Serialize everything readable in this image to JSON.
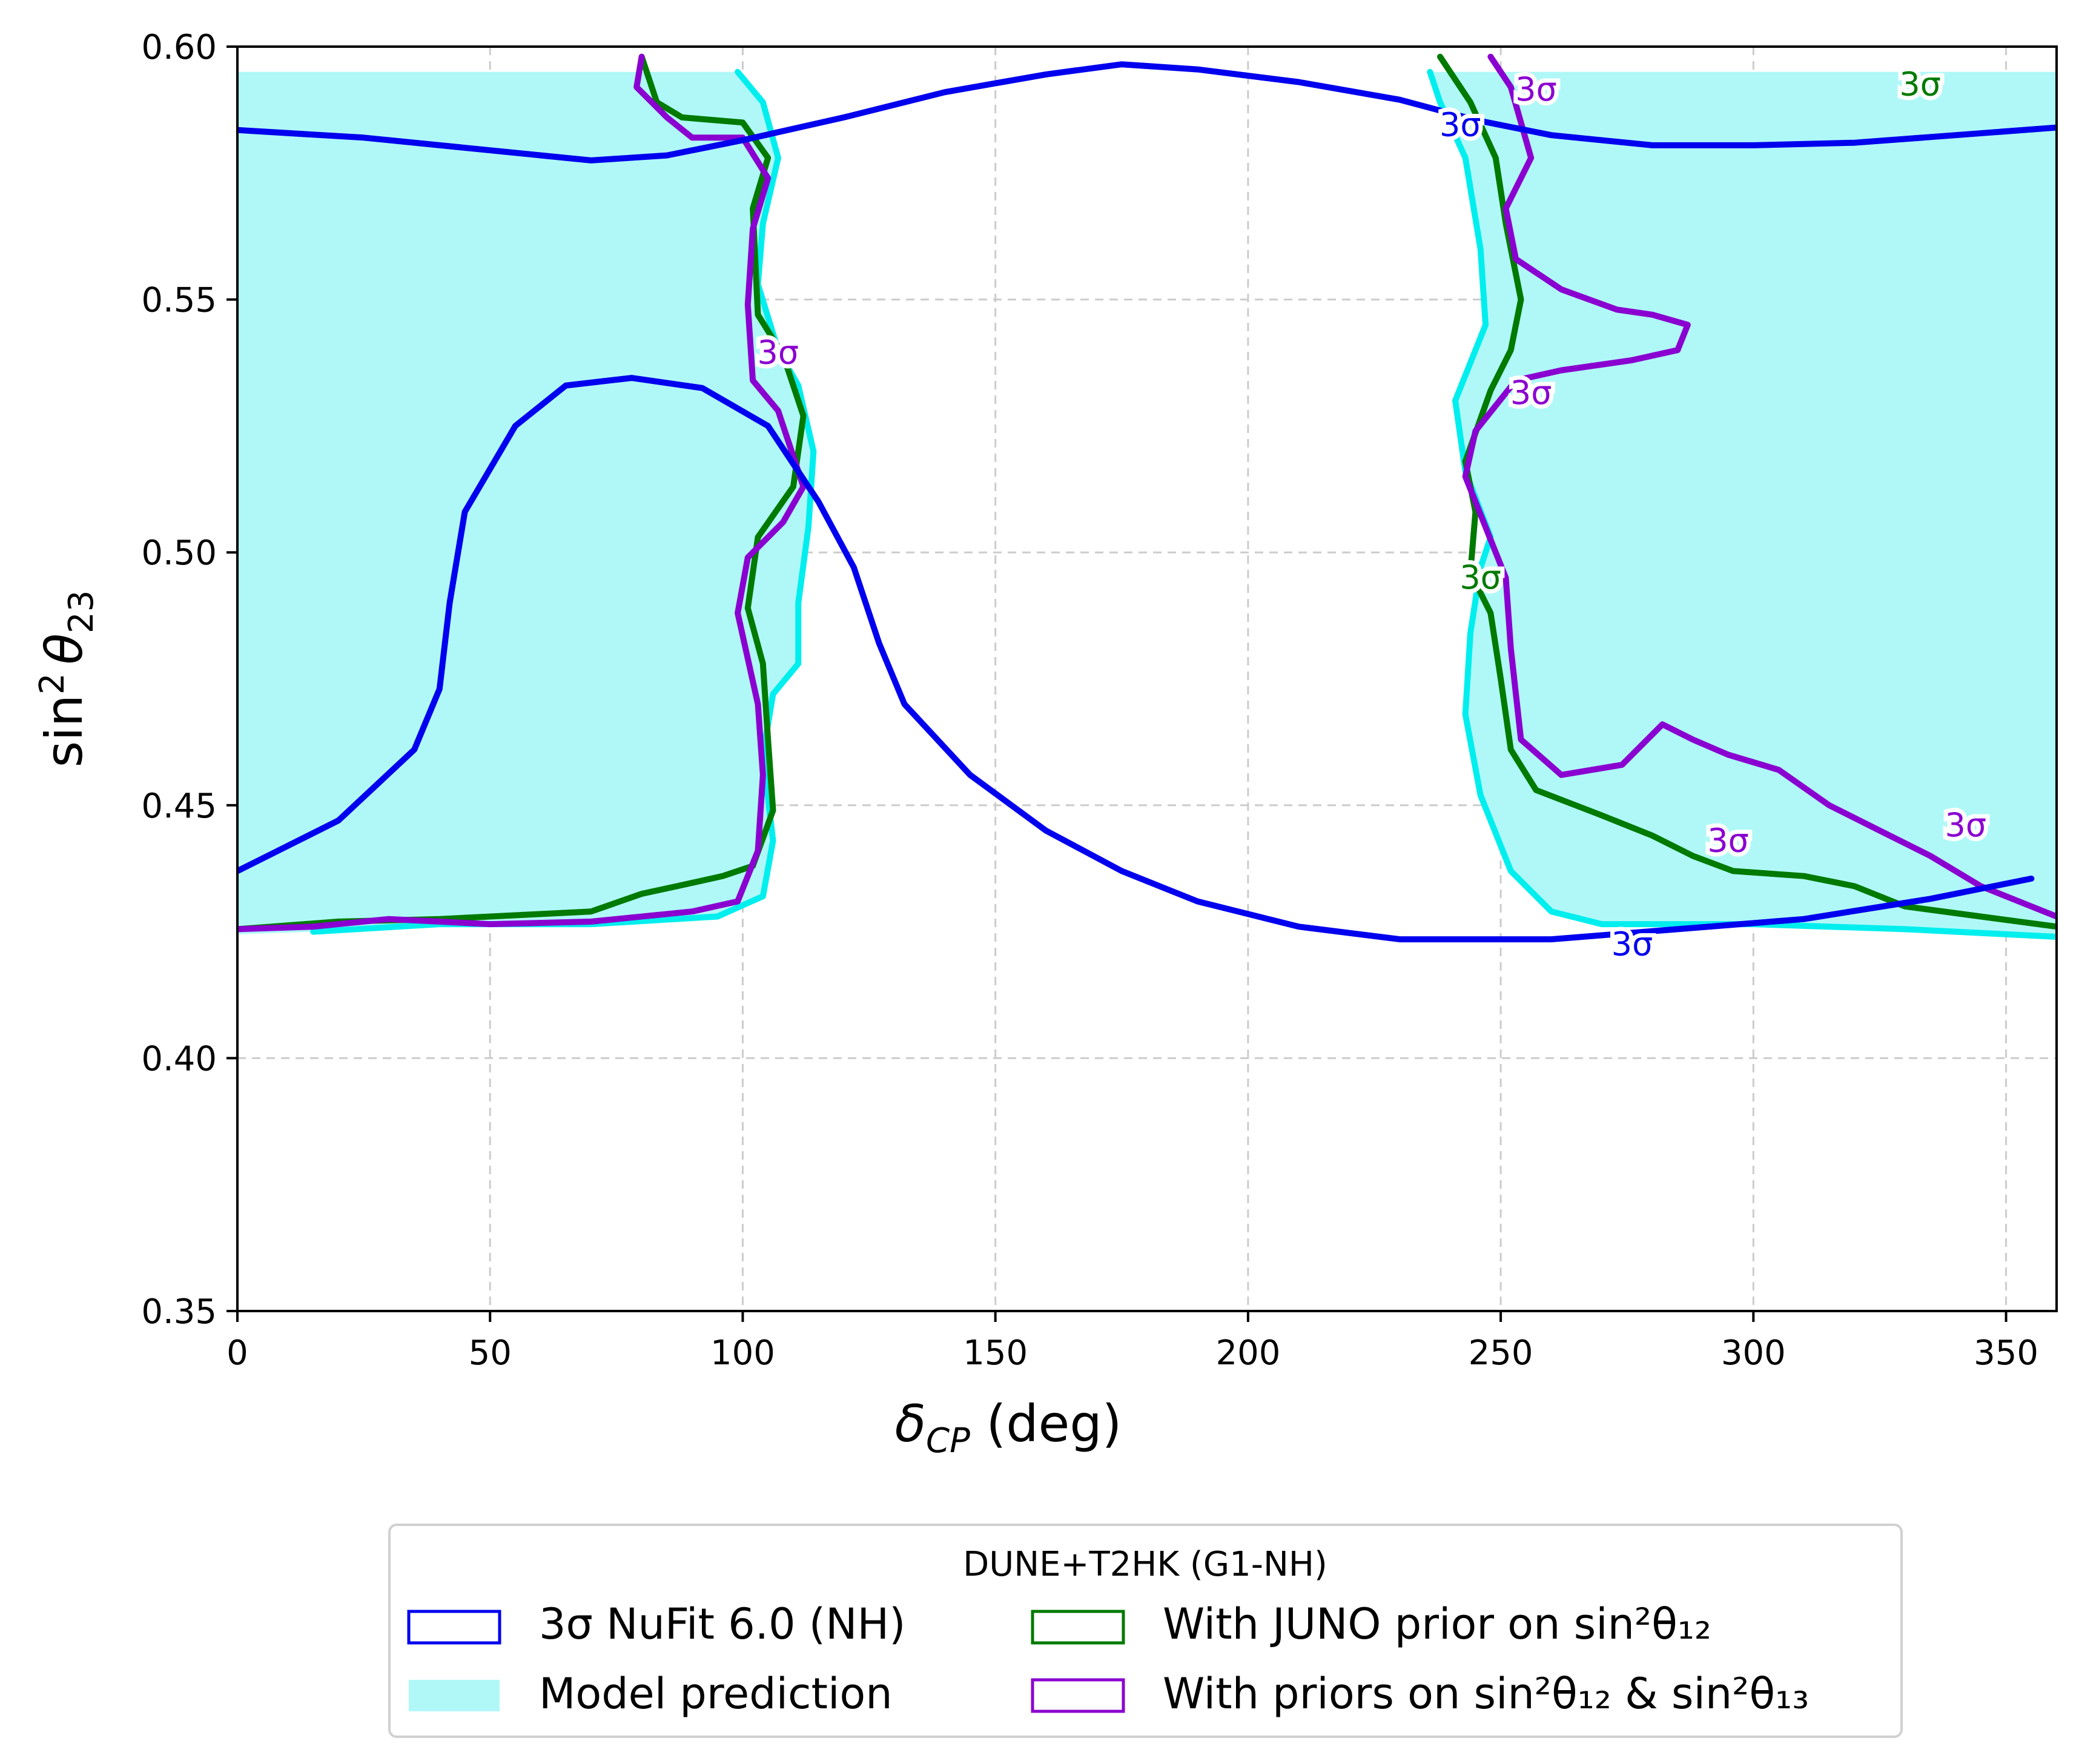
{
  "chart_data": {
    "type": "contour",
    "xlabel": "δ",
    "xlabel_sub": "CP",
    "xlabel_unit": " (deg)",
    "ylabel": "sin",
    "ylabel_sup": "2",
    "ylabel_theta": "θ",
    "ylabel_sub": "23",
    "xlim": [
      0,
      360
    ],
    "ylim": [
      0.35,
      0.6
    ],
    "xticks": [
      0,
      50,
      100,
      150,
      200,
      250,
      300,
      350
    ],
    "xtick_labels": [
      "0",
      "50",
      "100",
      "150",
      "200",
      "250",
      "300",
      "350"
    ],
    "yticks": [
      0.35,
      0.4,
      0.45,
      0.5,
      0.55,
      0.6
    ],
    "ytick_labels": [
      "0.35",
      "0.40",
      "0.45",
      "0.50",
      "0.55",
      "0.60"
    ],
    "grid": true,
    "legend": {
      "title": "DUNE+T2HK (G1-NH)",
      "placement": "below plot, centered, two columns",
      "entries": [
        {
          "label": "3σ NuFit 6.0 (NH)",
          "color": "#0000ee",
          "style": "outline"
        },
        {
          "label": "Model prediction",
          "color": "#b0f8f8",
          "style": "filled"
        },
        {
          "label": "With JUNO prior on sin²θ₁₂",
          "color": "#007a00",
          "style": "outline"
        },
        {
          "label": "With priors on sin²θ₁₂ & sin²θ₁₃",
          "color": "#8a00d0",
          "style": "outline"
        }
      ]
    },
    "colors": {
      "nufit": "#0000ee",
      "model_fill": "#b0f8f8",
      "model_edge": "#00eeee",
      "juno": "#007a00",
      "priors": "#8a00d0",
      "grid": "#cccccc"
    },
    "series": [
      {
        "key": "nufit_upper",
        "points": [
          [
            0,
            0.5835
          ],
          [
            25,
            0.582
          ],
          [
            50,
            0.5795
          ],
          [
            70,
            0.5775
          ],
          [
            85,
            0.5785
          ],
          [
            100,
            0.5815
          ],
          [
            120,
            0.586
          ],
          [
            140,
            0.591
          ],
          [
            160,
            0.5945
          ],
          [
            175,
            0.5965
          ],
          [
            190,
            0.5955
          ],
          [
            210,
            0.593
          ],
          [
            230,
            0.5895
          ],
          [
            245,
            0.5855
          ],
          [
            260,
            0.5825
          ],
          [
            280,
            0.5805
          ],
          [
            300,
            0.5805
          ],
          [
            320,
            0.581
          ],
          [
            340,
            0.5825
          ],
          [
            360,
            0.584
          ]
        ]
      },
      {
        "key": "nufit_lower",
        "points": [
          [
            0,
            0.437
          ],
          [
            20,
            0.447
          ],
          [
            35,
            0.461
          ],
          [
            40,
            0.473
          ],
          [
            42,
            0.49
          ],
          [
            45,
            0.508
          ],
          [
            55,
            0.525
          ],
          [
            65,
            0.533
          ],
          [
            78,
            0.5345
          ],
          [
            92,
            0.5325
          ],
          [
            105,
            0.525
          ],
          [
            115,
            0.51
          ],
          [
            122,
            0.497
          ],
          [
            127,
            0.482
          ],
          [
            132,
            0.47
          ],
          [
            145,
            0.456
          ],
          [
            160,
            0.445
          ],
          [
            175,
            0.437
          ],
          [
            190,
            0.431
          ],
          [
            210,
            0.426
          ],
          [
            230,
            0.4235
          ],
          [
            260,
            0.4235
          ],
          [
            285,
            0.4255
          ],
          [
            310,
            0.4275
          ],
          [
            335,
            0.4315
          ],
          [
            355,
            0.4355
          ]
        ]
      },
      {
        "key": "model_left",
        "points": [
          [
            0,
            0.595
          ],
          [
            99,
            0.595
          ],
          [
            104,
            0.589
          ],
          [
            107,
            0.578
          ],
          [
            104,
            0.565
          ],
          [
            103,
            0.553
          ],
          [
            107,
            0.54
          ],
          [
            111,
            0.533
          ],
          [
            114,
            0.52
          ],
          [
            113,
            0.505
          ],
          [
            111,
            0.49
          ],
          [
            111,
            0.478
          ],
          [
            106,
            0.472
          ],
          [
            104,
            0.46
          ],
          [
            106,
            0.443
          ],
          [
            104,
            0.432
          ],
          [
            95,
            0.428
          ],
          [
            70,
            0.4265
          ],
          [
            40,
            0.4265
          ],
          [
            15,
            0.425
          ],
          [
            0,
            0.4245
          ]
        ]
      },
      {
        "key": "model_right",
        "points": [
          [
            236,
            0.595
          ],
          [
            360,
            0.595
          ],
          [
            360,
            0.424
          ],
          [
            330,
            0.4255
          ],
          [
            300,
            0.4265
          ],
          [
            270,
            0.4265
          ],
          [
            260,
            0.429
          ],
          [
            252,
            0.437
          ],
          [
            246,
            0.452
          ],
          [
            243,
            0.468
          ],
          [
            244,
            0.484
          ],
          [
            246,
            0.497
          ],
          [
            248,
            0.503
          ],
          [
            243,
            0.516
          ],
          [
            241,
            0.53
          ],
          [
            247,
            0.545
          ],
          [
            246,
            0.56
          ],
          [
            243,
            0.578
          ],
          [
            238,
            0.589
          ]
        ]
      },
      {
        "key": "juno_left",
        "points": [
          [
            0,
            0.4255
          ],
          [
            20,
            0.427
          ],
          [
            40,
            0.4275
          ],
          [
            60,
            0.4285
          ],
          [
            70,
            0.429
          ],
          [
            80,
            0.4325
          ],
          [
            87,
            0.434
          ],
          [
            96,
            0.436
          ],
          [
            102,
            0.438
          ],
          [
            106,
            0.449
          ],
          [
            105,
            0.463
          ],
          [
            104,
            0.478
          ],
          [
            101,
            0.489
          ],
          [
            103,
            0.503
          ],
          [
            110,
            0.513
          ],
          [
            112,
            0.527
          ],
          [
            108,
            0.539
          ],
          [
            103,
            0.547
          ],
          [
            102,
            0.568
          ],
          [
            105,
            0.578
          ],
          [
            100,
            0.585
          ],
          [
            88,
            0.586
          ],
          [
            83,
            0.589
          ],
          [
            80,
            0.598
          ]
        ]
      },
      {
        "key": "juno_right",
        "points": [
          [
            238,
            0.598
          ],
          [
            244,
            0.589
          ],
          [
            249,
            0.578
          ],
          [
            251,
            0.565
          ],
          [
            254,
            0.55
          ],
          [
            252,
            0.54
          ],
          [
            248,
            0.532
          ],
          [
            243,
            0.518
          ],
          [
            245,
            0.508
          ],
          [
            244,
            0.496
          ],
          [
            248,
            0.488
          ],
          [
            250,
            0.475
          ],
          [
            252,
            0.461
          ],
          [
            257,
            0.453
          ],
          [
            270,
            0.448
          ],
          [
            280,
            0.444
          ],
          [
            288,
            0.44
          ],
          [
            296,
            0.437
          ],
          [
            310,
            0.436
          ],
          [
            320,
            0.434
          ],
          [
            330,
            0.43
          ],
          [
            345,
            0.428
          ],
          [
            360,
            0.426
          ]
        ]
      },
      {
        "key": "priors_left",
        "points": [
          [
            0,
            0.4255
          ],
          [
            15,
            0.426
          ],
          [
            30,
            0.4275
          ],
          [
            50,
            0.4265
          ],
          [
            70,
            0.427
          ],
          [
            90,
            0.429
          ],
          [
            99,
            0.431
          ],
          [
            103,
            0.441
          ],
          [
            104,
            0.456
          ],
          [
            103,
            0.47
          ],
          [
            99,
            0.488
          ],
          [
            101,
            0.499
          ],
          [
            108,
            0.506
          ],
          [
            112,
            0.513
          ],
          [
            107,
            0.528
          ],
          [
            102,
            0.534
          ],
          [
            101,
            0.549
          ],
          [
            102,
            0.564
          ],
          [
            105,
            0.574
          ],
          [
            100,
            0.582
          ],
          [
            90,
            0.582
          ],
          [
            85,
            0.586
          ],
          [
            79,
            0.592
          ],
          [
            80,
            0.598
          ]
        ]
      },
      {
        "key": "priors_right",
        "points": [
          [
            248,
            0.598
          ],
          [
            252,
            0.592
          ],
          [
            256,
            0.578
          ],
          [
            251,
            0.568
          ],
          [
            253,
            0.558
          ],
          [
            262,
            0.552
          ],
          [
            273,
            0.548
          ],
          [
            280,
            0.547
          ],
          [
            287,
            0.545
          ],
          [
            285,
            0.54
          ],
          [
            276,
            0.538
          ],
          [
            262,
            0.536
          ],
          [
            253,
            0.534
          ],
          [
            245,
            0.524
          ],
          [
            243,
            0.515
          ],
          [
            247,
            0.505
          ],
          [
            251,
            0.495
          ],
          [
            252,
            0.481
          ],
          [
            254,
            0.463
          ],
          [
            262,
            0.456
          ],
          [
            274,
            0.458
          ],
          [
            282,
            0.466
          ],
          [
            288,
            0.463
          ],
          [
            295,
            0.46
          ],
          [
            305,
            0.457
          ],
          [
            315,
            0.45
          ],
          [
            325,
            0.445
          ],
          [
            335,
            0.44
          ],
          [
            345,
            0.434
          ],
          [
            360,
            0.428
          ]
        ]
      }
    ],
    "contour_labels": [
      {
        "text": "3σ",
        "x": 242,
        "y": 0.5845,
        "color": "nufit"
      },
      {
        "text": "3σ",
        "x": 276,
        "y": 0.4225,
        "color": "nufit"
      },
      {
        "text": "3σ",
        "x": 257,
        "y": 0.5915,
        "color": "priors"
      },
      {
        "text": "3σ",
        "x": 333,
        "y": 0.5925,
        "color": "juno"
      },
      {
        "text": "3σ",
        "x": 256,
        "y": 0.5315,
        "color": "priors"
      },
      {
        "text": "3σ",
        "x": 295,
        "y": 0.443,
        "color": "priors"
      },
      {
        "text": "3σ",
        "x": 342,
        "y": 0.446,
        "color": "priors"
      },
      {
        "text": "3σ",
        "x": 107,
        "y": 0.5395,
        "color": "priors"
      },
      {
        "text": "3σ",
        "x": 246,
        "y": 0.495,
        "color": "juno"
      }
    ]
  }
}
